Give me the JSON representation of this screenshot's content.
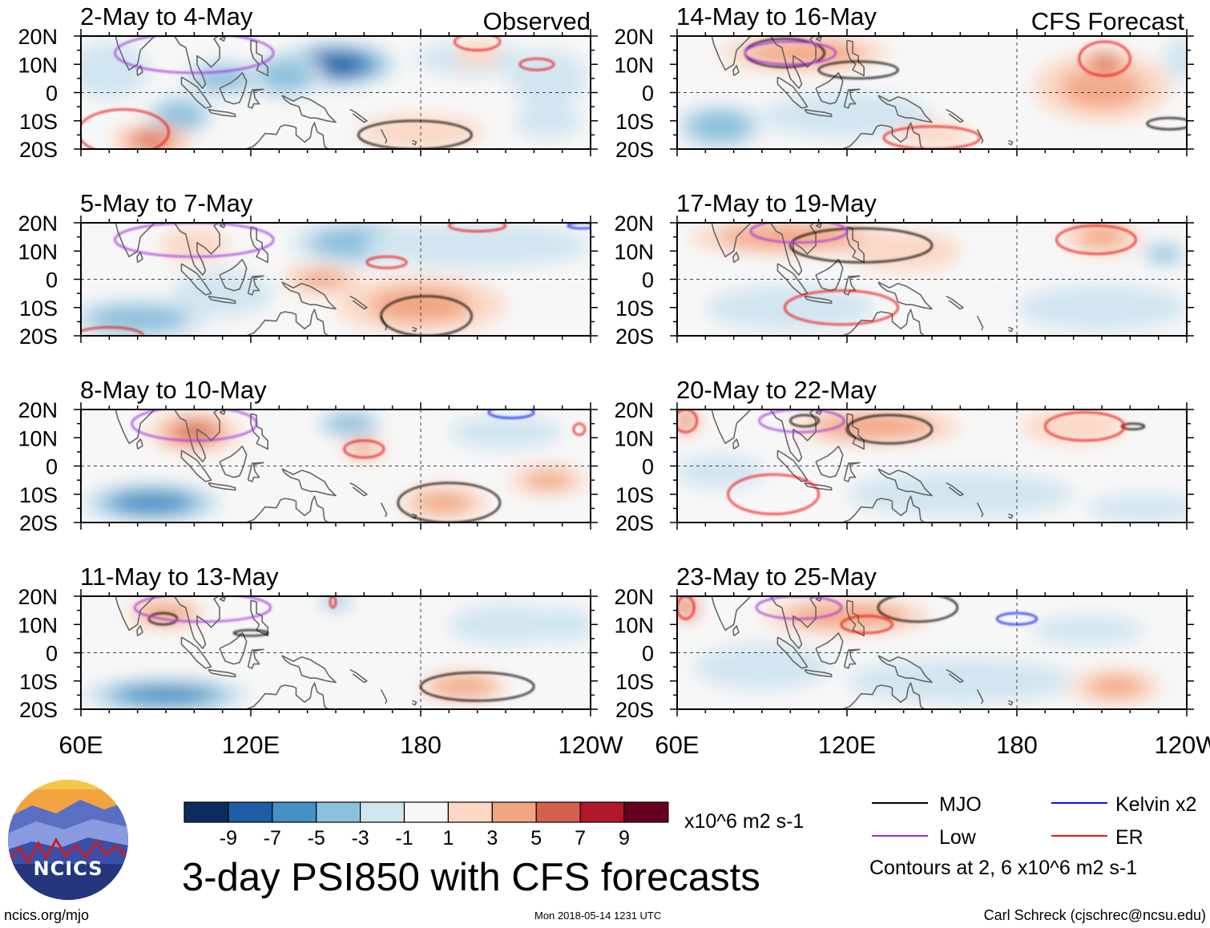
{
  "chart_data": {
    "type": "heatmap",
    "title": "3-day PSI850 with CFS forecasts",
    "units": "x10^6 m2 s-1",
    "colorbar": {
      "levels": [
        "-9",
        "-7",
        "-5",
        "-3",
        "-1",
        "1",
        "3",
        "5",
        "7",
        "9"
      ],
      "colors": [
        "#0b2d5e",
        "#1d5ea6",
        "#4590c4",
        "#8dc0dd",
        "#d1e5f0",
        "#f7f7f7",
        "#fbd7c4",
        "#f2a582",
        "#d6604d",
        "#b2182b",
        "#67001f"
      ]
    },
    "lat_labels": [
      "20N",
      "10N",
      "0",
      "10S",
      "20S"
    ],
    "lon_labels": [
      "60E",
      "120E",
      "180",
      "120W"
    ],
    "lon_range": [
      60,
      240
    ],
    "lat_range": [
      -20,
      20
    ],
    "column_tags": {
      "left": "Observed",
      "right": "CFS Forecast"
    },
    "panels": [
      {
        "title": "2-May to 4-May",
        "group": "observed",
        "anomalies": [
          {
            "lon": 150,
            "lat": 10,
            "rlon": 22,
            "rlat": 8,
            "value": -8
          },
          {
            "lon": 132,
            "lat": 6,
            "rlon": 14,
            "rlat": 8,
            "value": -5
          },
          {
            "lon": 110,
            "lat": 5,
            "rlon": 14,
            "rlat": 6,
            "value": -4
          },
          {
            "lon": 95,
            "lat": -8,
            "rlon": 12,
            "rlat": 7,
            "value": -4
          },
          {
            "lon": 70,
            "lat": 8,
            "rlon": 14,
            "rlat": 10,
            "value": -2
          },
          {
            "lon": 85,
            "lat": -17,
            "rlon": 14,
            "rlat": 6,
            "value": 5
          },
          {
            "lon": 180,
            "lat": -14,
            "rlon": 22,
            "rlat": 6,
            "value": 2
          },
          {
            "lon": 198,
            "lat": 12,
            "rlon": 20,
            "rlat": 6,
            "value": -2
          },
          {
            "lon": 200,
            "lat": 14,
            "rlon": 8,
            "rlat": 5,
            "value": 2
          },
          {
            "lon": 225,
            "lat": 5,
            "rlon": 14,
            "rlat": 10,
            "value": -2
          },
          {
            "lon": 225,
            "lat": -10,
            "rlon": 12,
            "rlat": 6,
            "value": -2
          }
        ],
        "contours": [
          {
            "field": "MJO",
            "lon": 178,
            "lat": -15,
            "rlon": 20,
            "rlat": 5
          },
          {
            "field": "Low",
            "lon": 100,
            "lat": 14,
            "rlon": 28,
            "rlat": 7
          },
          {
            "field": "ER",
            "lon": 75,
            "lat": -14,
            "rlon": 16,
            "rlat": 8
          },
          {
            "field": "ER",
            "lon": 200,
            "lat": 18,
            "rlon": 8,
            "rlat": 3
          },
          {
            "field": "ER",
            "lon": 221,
            "lat": 10,
            "rlon": 6,
            "rlat": 2
          }
        ]
      },
      {
        "title": "5-May to 7-May",
        "group": "observed",
        "anomalies": [
          {
            "lon": 155,
            "lat": 15,
            "rlon": 16,
            "rlat": 5,
            "value": -8
          },
          {
            "lon": 158,
            "lat": 13,
            "rlon": 24,
            "rlat": 8,
            "value": -5
          },
          {
            "lon": 80,
            "lat": -14,
            "rlon": 25,
            "rlat": 7,
            "value": -5
          },
          {
            "lon": 200,
            "lat": 12,
            "rlon": 40,
            "rlat": 8,
            "value": -3
          },
          {
            "lon": 110,
            "lat": -5,
            "rlon": 18,
            "rlat": 8,
            "value": -2
          },
          {
            "lon": 182,
            "lat": -13,
            "rlon": 16,
            "rlat": 6,
            "value": 6
          },
          {
            "lon": 180,
            "lat": -9,
            "rlon": 30,
            "rlat": 10,
            "value": 3
          },
          {
            "lon": 145,
            "lat": 0,
            "rlon": 14,
            "rlat": 5,
            "value": 3
          },
          {
            "lon": 100,
            "lat": 12,
            "rlon": 12,
            "rlat": 6,
            "value": 2
          }
        ],
        "contours": [
          {
            "field": "MJO",
            "lon": 182,
            "lat": -13,
            "rlon": 16,
            "rlat": 7
          },
          {
            "field": "Low",
            "lon": 100,
            "lat": 14,
            "rlon": 28,
            "rlat": 6
          },
          {
            "field": "ER",
            "lon": 168,
            "lat": 6,
            "rlon": 7,
            "rlat": 2
          },
          {
            "field": "ER",
            "lon": 200,
            "lat": 19,
            "rlon": 10,
            "rlat": 2
          },
          {
            "field": "ER",
            "lon": 70,
            "lat": -20,
            "rlon": 12,
            "rlat": 3
          },
          {
            "field": "Kelvin x2",
            "lon": 237,
            "lat": 19,
            "rlon": 5,
            "rlat": 1
          }
        ]
      },
      {
        "title": "8-May to 10-May",
        "group": "observed",
        "anomalies": [
          {
            "lon": 85,
            "lat": -13,
            "rlon": 25,
            "rlat": 7,
            "value": -7
          },
          {
            "lon": 155,
            "lat": 15,
            "rlon": 12,
            "rlat": 5,
            "value": -5
          },
          {
            "lon": 210,
            "lat": 12,
            "rlon": 20,
            "rlat": 6,
            "value": -2
          },
          {
            "lon": 100,
            "lat": 12,
            "rlon": 16,
            "rlat": 7,
            "value": 5
          },
          {
            "lon": 188,
            "lat": -13,
            "rlon": 16,
            "rlat": 6,
            "value": 3
          },
          {
            "lon": 225,
            "lat": -5,
            "rlon": 14,
            "rlat": 5,
            "value": 3
          },
          {
            "lon": 160,
            "lat": 6,
            "rlon": 8,
            "rlat": 4,
            "value": 3
          }
        ],
        "contours": [
          {
            "field": "MJO",
            "lon": 190,
            "lat": -13,
            "rlon": 18,
            "rlat": 7
          },
          {
            "field": "Low",
            "lon": 100,
            "lat": 15,
            "rlon": 22,
            "rlat": 6
          },
          {
            "field": "ER",
            "lon": 160,
            "lat": 6,
            "rlon": 7,
            "rlat": 3
          },
          {
            "field": "ER",
            "lon": 236,
            "lat": 13,
            "rlon": 2,
            "rlat": 2
          },
          {
            "field": "Kelvin x2",
            "lon": 212,
            "lat": 19,
            "rlon": 8,
            "rlat": 2
          }
        ]
      },
      {
        "title": "11-May to 13-May",
        "group": "observed",
        "anomalies": [
          {
            "lon": 90,
            "lat": -15,
            "rlon": 30,
            "rlat": 6,
            "value": -6
          },
          {
            "lon": 90,
            "lat": 14,
            "rlon": 14,
            "rlat": 5,
            "value": 4
          },
          {
            "lon": 195,
            "lat": -12,
            "rlon": 16,
            "rlat": 5,
            "value": 4
          },
          {
            "lon": 210,
            "lat": 10,
            "rlon": 20,
            "rlat": 7,
            "value": -3
          },
          {
            "lon": 150,
            "lat": 18,
            "rlon": 6,
            "rlat": 3,
            "value": -4
          },
          {
            "lon": 230,
            "lat": 10,
            "rlon": 12,
            "rlat": 6,
            "value": -2
          }
        ],
        "contours": [
          {
            "field": "MJO",
            "lon": 200,
            "lat": -12,
            "rlon": 20,
            "rlat": 5
          },
          {
            "field": "MJO",
            "lon": 89,
            "lat": 12,
            "rlon": 5,
            "rlat": 2
          },
          {
            "field": "MJO",
            "lon": 120,
            "lat": 7,
            "rlon": 6,
            "rlat": 1
          },
          {
            "field": "Low",
            "lon": 103,
            "lat": 16,
            "rlon": 24,
            "rlat": 5
          },
          {
            "field": "ER",
            "lon": 149,
            "lat": 18,
            "rlon": 1,
            "rlat": 2
          }
        ]
      },
      {
        "title": "14-May to 16-May",
        "group": "forecast",
        "anomalies": [
          {
            "lon": 105,
            "lat": 14,
            "rlon": 30,
            "rlat": 6,
            "value": 4
          },
          {
            "lon": 210,
            "lat": 2,
            "rlon": 24,
            "rlat": 12,
            "value": 3
          },
          {
            "lon": 211,
            "lat": 10,
            "rlon": 10,
            "rlat": 6,
            "value": 5
          },
          {
            "lon": 75,
            "lat": -12,
            "rlon": 16,
            "rlat": 8,
            "value": -4
          },
          {
            "lon": 120,
            "lat": -8,
            "rlon": 30,
            "rlat": 8,
            "value": -2
          },
          {
            "lon": 150,
            "lat": -15,
            "rlon": 14,
            "rlat": 4,
            "value": 2
          },
          {
            "lon": 238,
            "lat": 12,
            "rlon": 6,
            "rlat": 8,
            "value": -3
          }
        ],
        "contours": [
          {
            "field": "MJO",
            "lon": 98,
            "lat": 14,
            "rlon": 14,
            "rlat": 5
          },
          {
            "field": "MJO",
            "lon": 124,
            "lat": 8,
            "rlon": 14,
            "rlat": 3
          },
          {
            "field": "MJO",
            "lon": 234,
            "lat": -11,
            "rlon": 8,
            "rlat": 2
          },
          {
            "field": "Low",
            "lon": 100,
            "lat": 14,
            "rlon": 16,
            "rlat": 4
          },
          {
            "field": "ER",
            "lon": 211,
            "lat": 12,
            "rlon": 9,
            "rlat": 6
          },
          {
            "field": "ER",
            "lon": 150,
            "lat": -16,
            "rlon": 17,
            "rlat": 4
          }
        ]
      },
      {
        "title": "17-May to 19-May",
        "group": "forecast",
        "anomalies": [
          {
            "lon": 100,
            "lat": 15,
            "rlon": 36,
            "rlat": 6,
            "value": 4
          },
          {
            "lon": 140,
            "lat": 10,
            "rlon": 20,
            "rlat": 7,
            "value": 2
          },
          {
            "lon": 210,
            "lat": 15,
            "rlon": 14,
            "rlat": 6,
            "value": 3
          },
          {
            "lon": 210,
            "lat": -10,
            "rlon": 30,
            "rlat": 8,
            "value": -2
          },
          {
            "lon": 232,
            "lat": 9,
            "rlon": 8,
            "rlat": 4,
            "value": -4
          },
          {
            "lon": 100,
            "lat": -10,
            "rlon": 30,
            "rlat": 8,
            "value": -2
          }
        ],
        "contours": [
          {
            "field": "MJO",
            "lon": 125,
            "lat": 12,
            "rlon": 25,
            "rlat": 6
          },
          {
            "field": "Low",
            "lon": 103,
            "lat": 17,
            "rlon": 17,
            "rlat": 4
          },
          {
            "field": "ER",
            "lon": 208,
            "lat": 14,
            "rlon": 14,
            "rlat": 5
          },
          {
            "field": "ER",
            "lon": 118,
            "lat": -10,
            "rlon": 20,
            "rlat": 6
          }
        ]
      },
      {
        "title": "20-May to 22-May",
        "group": "forecast",
        "anomalies": [
          {
            "lon": 130,
            "lat": 14,
            "rlon": 30,
            "rlat": 6,
            "value": 4
          },
          {
            "lon": 63,
            "lat": 16,
            "rlon": 5,
            "rlat": 5,
            "value": 5
          },
          {
            "lon": 200,
            "lat": 14,
            "rlon": 18,
            "rlat": 6,
            "value": 2
          },
          {
            "lon": 75,
            "lat": -2,
            "rlon": 16,
            "rlat": 6,
            "value": -3
          },
          {
            "lon": 160,
            "lat": -10,
            "rlon": 40,
            "rlat": 8,
            "value": -2
          },
          {
            "lon": 225,
            "lat": -15,
            "rlon": 20,
            "rlat": 5,
            "value": -2
          }
        ],
        "contours": [
          {
            "field": "MJO",
            "lon": 135,
            "lat": 13,
            "rlon": 15,
            "rlat": 5
          },
          {
            "field": "MJO",
            "lon": 105,
            "lat": 16,
            "rlon": 5,
            "rlat": 2
          },
          {
            "field": "MJO",
            "lon": 221,
            "lat": 14,
            "rlon": 4,
            "rlat": 1
          },
          {
            "field": "Low",
            "lon": 104,
            "lat": 16,
            "rlon": 15,
            "rlat": 4
          },
          {
            "field": "ER",
            "lon": 204,
            "lat": 14,
            "rlon": 14,
            "rlat": 5
          },
          {
            "field": "ER",
            "lon": 94,
            "lat": -10,
            "rlon": 16,
            "rlat": 7
          },
          {
            "field": "ER",
            "lon": 63,
            "lat": 16,
            "rlon": 4,
            "rlat": 4
          }
        ]
      },
      {
        "title": "23-May to 25-May",
        "group": "forecast",
        "anomalies": [
          {
            "lon": 120,
            "lat": 13,
            "rlon": 30,
            "rlat": 6,
            "value": 4
          },
          {
            "lon": 63,
            "lat": 16,
            "rlon": 5,
            "rlat": 5,
            "value": 6
          },
          {
            "lon": 90,
            "lat": -5,
            "rlon": 24,
            "rlat": 8,
            "value": -3
          },
          {
            "lon": 160,
            "lat": -10,
            "rlon": 40,
            "rlat": 8,
            "value": -2
          },
          {
            "lon": 215,
            "lat": -12,
            "rlon": 16,
            "rlat": 6,
            "value": 3
          },
          {
            "lon": 205,
            "lat": 8,
            "rlon": 20,
            "rlat": 5,
            "value": -2
          }
        ],
        "contours": [
          {
            "field": "MJO",
            "lon": 145,
            "lat": 16,
            "rlon": 14,
            "rlat": 5
          },
          {
            "field": "Low",
            "lon": 103,
            "lat": 16,
            "rlon": 15,
            "rlat": 4
          },
          {
            "field": "ER",
            "lon": 127,
            "lat": 10,
            "rlon": 9,
            "rlat": 3
          },
          {
            "field": "ER",
            "lon": 63,
            "lat": 16,
            "rlon": 3,
            "rlat": 4
          },
          {
            "field": "Kelvin x2",
            "lon": 180,
            "lat": 12,
            "rlon": 7,
            "rlat": 2
          }
        ]
      }
    ],
    "legend": [
      {
        "name": "MJO",
        "color": "#000000"
      },
      {
        "name": "Kelvin x2",
        "color": "#0015ff"
      },
      {
        "name": "Low",
        "color": "#a030e0"
      },
      {
        "name": "ER",
        "color": "#ee1111"
      }
    ]
  },
  "legend_note": "Contours at 2, 6 x10^6 m2 s-1",
  "logo_text": "NCICS",
  "footer": {
    "url": "ncics.org/mjo",
    "timestamp": "Mon 2018-05-14 1231 UTC",
    "author": "Carl Schreck (cjschrec@ncsu.edu)"
  }
}
